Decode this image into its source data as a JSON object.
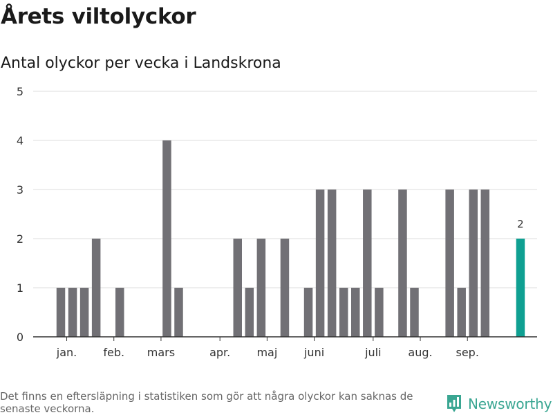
{
  "header": {
    "title": "Årets viltolyckor",
    "subtitle": "Antal olyckor per vecka i Landskrona"
  },
  "footer": {
    "note": "Det finns en eftersläpning i statistiken som gör att några olyckor kan saknas de senaste veckorna.",
    "brand": "Newsworthy",
    "brand_icon": "newsworthy-logo-icon"
  },
  "colors": {
    "bar": "#717075",
    "highlight": "#0fa092",
    "grid": "#dcdcdc",
    "axis": "#333333",
    "brand": "#3aa692"
  },
  "chart_data": {
    "type": "bar",
    "title": "Årets viltolyckor",
    "subtitle": "Antal olyckor per vecka i Landskrona",
    "xlabel": "",
    "ylabel": "",
    "ylim": [
      0,
      5
    ],
    "yticks": [
      0,
      1,
      2,
      3,
      4,
      5
    ],
    "grid": true,
    "weeks": [
      1,
      2,
      3,
      4,
      5,
      6,
      7,
      8,
      9,
      10,
      11,
      12,
      13,
      14,
      15,
      16,
      17,
      18,
      19,
      20,
      21,
      22,
      23,
      24,
      25,
      26,
      27,
      28,
      29,
      30,
      31,
      32,
      33,
      34,
      35,
      36,
      37,
      38,
      39,
      40
    ],
    "values": [
      1,
      1,
      1,
      2,
      0,
      1,
      0,
      0,
      0,
      4,
      1,
      0,
      0,
      0,
      0,
      2,
      1,
      2,
      0,
      2,
      0,
      1,
      3,
      3,
      1,
      1,
      3,
      1,
      0,
      3,
      1,
      0,
      0,
      3,
      1,
      3,
      3,
      0,
      0,
      2
    ],
    "highlight_index": 39,
    "data_labels": [
      {
        "index": 39,
        "text": "2"
      }
    ],
    "month_labels": [
      {
        "label": "jan.",
        "week": 1.5
      },
      {
        "label": "feb.",
        "week": 5.5
      },
      {
        "label": "mars",
        "week": 9.5
      },
      {
        "label": "apr.",
        "week": 14.5
      },
      {
        "label": "maj",
        "week": 18.5
      },
      {
        "label": "juni",
        "week": 22.5
      },
      {
        "label": "juli",
        "week": 27.5
      },
      {
        "label": "aug.",
        "week": 31.5
      },
      {
        "label": "sep.",
        "week": 35.5
      }
    ]
  }
}
